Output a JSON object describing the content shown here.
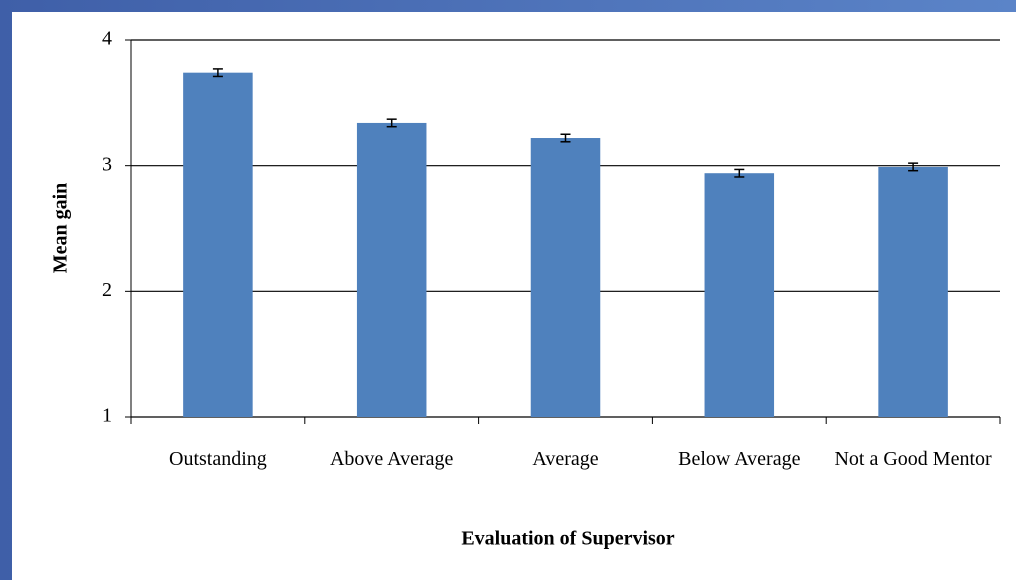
{
  "chart_data": {
    "type": "bar",
    "x_label": "Evaluation of Supervisor",
    "y_label": "Mean gain",
    "categories": [
      "Outstanding",
      "Above Average",
      "Average",
      "Below Average",
      "Not a Good Mentor"
    ],
    "values": [
      3.74,
      3.34,
      3.22,
      2.94,
      2.99
    ],
    "errors": [
      0.03,
      0.03,
      0.03,
      0.03,
      0.03
    ],
    "color": "#4f81bd",
    "ylim": [
      1,
      4
    ],
    "yticks": [
      1,
      2,
      3,
      4
    ],
    "grid": true
  }
}
